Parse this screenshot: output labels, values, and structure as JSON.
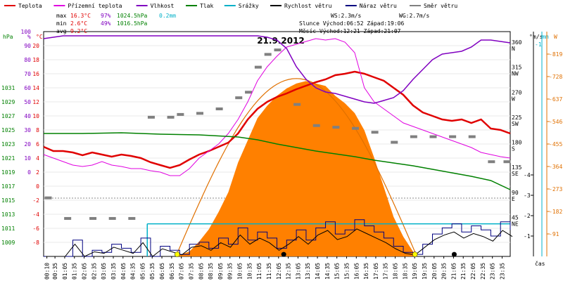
{
  "chart_data": {
    "type": "line",
    "title": "21.9.2012",
    "legend": [
      {
        "label": "Teplota",
        "color": "#e00000"
      },
      {
        "label": "Přízemní teplota",
        "color": "#e000e0"
      },
      {
        "label": "Vlhkost",
        "color": "#8000c0"
      },
      {
        "label": "Tlak",
        "color": "#008000"
      },
      {
        "label": "Srážky",
        "color": "#00b0c8"
      },
      {
        "label": "Rychlost větru",
        "color": "#000000"
      },
      {
        "label": "Náraz větru",
        "color": "#000080"
      },
      {
        "label": "Směr větru",
        "color": "#808080"
      }
    ],
    "stats": {
      "max_label": "max",
      "max_temp": "16.3°C",
      "max_hum": "97%",
      "max_press": "1024.5hPa",
      "max_rain": "0.2mm",
      "min_label": "min",
      "min_temp": "2.6°C",
      "min_hum": "49%",
      "min_press": "1016.5hPa",
      "avg_label": "avg",
      "avg_temp": "9.2°C"
    },
    "info": {
      "ws": "WS:2.3m/s",
      "wg": "WG:2.7m/s",
      "sun": "Slunce Východ:06:52  Západ:19:06",
      "moon": "Měsíc  Východ:12:21  Západ:21:07"
    },
    "axes": {
      "hpa_unit": "hPa",
      "pct_unit": "%",
      "c_unit": "°C",
      "hpa_ticks": [
        "1031",
        "1029",
        "1027",
        "1025",
        "1023",
        "1021",
        "1019",
        "1017",
        "1015",
        "1013",
        "1011",
        "1009"
      ],
      "pct_ticks": [
        "100",
        "90",
        "80",
        "70",
        "60",
        "50",
        "40",
        "30",
        "20",
        "10",
        "0"
      ],
      "c_ticks": [
        "20",
        "18",
        "16",
        "14",
        "12",
        "10",
        "8",
        "6",
        "4",
        "2",
        "0",
        "-2",
        "-4",
        "-6",
        "-8"
      ],
      "dir_unit": "°",
      "dir_ticks": [
        "360",
        "315",
        "270",
        "225",
        "180",
        "135",
        "90",
        "45"
      ],
      "dir_labels": [
        "N",
        "NW",
        "W",
        "SW",
        "S",
        "SE",
        "E",
        "NE"
      ],
      "ms_unit": "m/s",
      "ms_ticks": [
        "4",
        "3",
        "2",
        "1"
      ],
      "mm_unit": "mm",
      "mm_ticks": [
        "1"
      ],
      "w_unit": "W",
      "w_ticks": [
        "819",
        "728",
        "637",
        "546",
        "455",
        "364",
        "273",
        "182",
        "91"
      ],
      "x_unit": "čas",
      "x_ticks": [
        "00:10",
        "00:35",
        "01:05",
        "01:35",
        "02:05",
        "02:35",
        "03:05",
        "03:35",
        "04:05",
        "04:35",
        "05:05",
        "05:35",
        "06:05",
        "06:35",
        "07:05",
        "07:35",
        "08:05",
        "08:35",
        "09:05",
        "09:35",
        "10:05",
        "10:35",
        "11:05",
        "11:35",
        "12:05",
        "12:35",
        "13:05",
        "13:35",
        "14:05",
        "14:35",
        "15:05",
        "15:35",
        "16:05",
        "16:35",
        "17:05",
        "17:35",
        "18:05",
        "18:35",
        "19:05",
        "19:35",
        "20:05",
        "20:35",
        "21:05",
        "21:35",
        "22:05",
        "22:35",
        "23:05",
        "23:35"
      ]
    },
    "x_range_hours": [
      0,
      24
    ],
    "temp_range_c": [
      -10,
      22
    ],
    "series": [
      {
        "name": "Teplota",
        "color": "#e00000",
        "x": [
          0,
          0.5,
          1,
          1.5,
          2,
          2.5,
          3,
          3.5,
          4,
          4.5,
          5,
          5.5,
          6,
          6.5,
          7,
          7.5,
          8,
          8.5,
          9,
          9.5,
          10,
          10.5,
          11,
          11.5,
          12,
          12.5,
          13,
          13.5,
          14,
          14.5,
          15,
          15.5,
          16,
          16.5,
          17,
          17.5,
          18,
          18.5,
          19,
          19.5,
          20,
          20.5,
          21,
          21.5,
          22,
          22.5,
          23,
          23.5,
          24
        ],
        "y": [
          5.6,
          5,
          5,
          4.8,
          4.4,
          4.8,
          4.5,
          4.2,
          4.5,
          4.3,
          4,
          3.4,
          3,
          2.6,
          3,
          3.8,
          4.5,
          5,
          5.6,
          6.2,
          7.5,
          9.5,
          11,
          12,
          12.7,
          13.2,
          13.8,
          14.3,
          14.8,
          15.2,
          15.8,
          16,
          16.3,
          16,
          15.5,
          15,
          14,
          13,
          11.5,
          10.5,
          10,
          9.5,
          9.3,
          9.5,
          9,
          9.5,
          8.2,
          8,
          7.5
        ]
      },
      {
        "name": "Přízemní teplota",
        "color": "#e000e0",
        "x": [
          0,
          0.5,
          1,
          1.5,
          2,
          2.5,
          3,
          3.5,
          4,
          4.5,
          5,
          5.5,
          6,
          6.5,
          7,
          7.5,
          8,
          8.5,
          9,
          9.5,
          10,
          10.5,
          11,
          11.5,
          12,
          12.5,
          13,
          13.5,
          14,
          14.5,
          15,
          15.5,
          16,
          16.5,
          17,
          17.5,
          18,
          18.5,
          19,
          19.5,
          20,
          20.5,
          21,
          21.5,
          22,
          22.5,
          23,
          23.5,
          24
        ],
        "y": [
          4.5,
          4,
          3.5,
          3,
          2.8,
          3,
          3.5,
          3,
          2.8,
          2.5,
          2.5,
          2.2,
          2,
          1.5,
          1.5,
          2.5,
          4,
          5,
          6,
          7.5,
          9.5,
          12,
          15,
          17,
          18.5,
          19.8,
          20.2,
          20.6,
          21,
          20.8,
          21,
          20.5,
          19,
          14,
          12,
          11,
          10,
          9,
          8.5,
          8,
          7.5,
          7,
          6.5,
          6,
          5.5,
          4.8,
          4.5,
          4.2,
          4
        ]
      },
      {
        "name": "Vlhkost",
        "color": "#8000c0",
        "x": [
          0,
          0.5,
          1,
          1.5,
          2,
          2.5,
          3,
          3.5,
          4,
          4.5,
          5,
          5.5,
          6,
          6.5,
          7,
          7.5,
          8,
          8.5,
          9,
          9.5,
          10,
          10.5,
          11,
          11.5,
          12,
          12.5,
          13,
          13.5,
          14,
          14.5,
          15,
          15.5,
          16,
          16.5,
          17,
          17.5,
          18,
          18.5,
          19,
          19.5,
          20,
          20.5,
          21,
          21.5,
          22,
          22.5,
          23,
          23.5,
          24
        ],
        "y": [
          95,
          96,
          97,
          97,
          97,
          97,
          97,
          97,
          97,
          97,
          97,
          97,
          97,
          97,
          97,
          97,
          97,
          97,
          97,
          97,
          97,
          97,
          97,
          96,
          94,
          88,
          75,
          66,
          60,
          57,
          56,
          54,
          52,
          50,
          49,
          51,
          53,
          58,
          66,
          73,
          80,
          84,
          85,
          86,
          89,
          94,
          94,
          93,
          92
        ]
      },
      {
        "name": "Tlak",
        "color": "#008000",
        "x": [
          0,
          2,
          4,
          6,
          8,
          10,
          11,
          12,
          13,
          14,
          15,
          16,
          17,
          18,
          19,
          20,
          21,
          22,
          23,
          24
        ],
        "y": [
          1024.5,
          1024.5,
          1024.6,
          1024.4,
          1024.3,
          1024.0,
          1023.6,
          1023.0,
          1022.5,
          1022.0,
          1021.6,
          1021.2,
          1020.7,
          1020.3,
          1019.9,
          1019.4,
          1018.9,
          1018.4,
          1017.8,
          1016.5
        ]
      }
    ],
    "wind_direction_deg": {
      "x": [
        0.2,
        1.2,
        2.5,
        3.5,
        4.5,
        5.5,
        6.5,
        7,
        8,
        9,
        10,
        10.5,
        11,
        11.5,
        12,
        13,
        14,
        15,
        16,
        17,
        18,
        19,
        20,
        21,
        22,
        23,
        23.8
      ],
      "y": [
        80,
        43,
        43,
        43,
        43,
        225,
        225,
        230,
        232,
        240,
        260,
        270,
        315,
        338,
        346,
        248,
        210,
        207,
        205,
        198,
        180,
        190,
        190,
        190,
        190,
        145,
        145
      ]
    },
    "solar_radiation_w": {
      "x": [
        6.8,
        7.5,
        8,
        8.5,
        9,
        9.5,
        10,
        10.5,
        11,
        11.5,
        12,
        12.5,
        13,
        13.5,
        14,
        14.5,
        15,
        15.5,
        16,
        16.5,
        17,
        17.5,
        18,
        18.5,
        19,
        19.2
      ],
      "y": [
        0,
        20,
        60,
        110,
        180,
        260,
        380,
        470,
        560,
        610,
        650,
        680,
        700,
        710,
        700,
        690,
        650,
        620,
        580,
        510,
        400,
        280,
        160,
        80,
        20,
        0
      ]
    },
    "wind_speed_ms": {
      "x": [
        0,
        1,
        1.5,
        2,
        2.5,
        3,
        3.5,
        4,
        4.5,
        5,
        5.5,
        6,
        6.5,
        7,
        7.5,
        8,
        8.5,
        9,
        9.5,
        10,
        10.5,
        11,
        11.5,
        12,
        12.5,
        13,
        13.5,
        14,
        14.5,
        15,
        15.5,
        16,
        16.5,
        17,
        17.5,
        18,
        18.5,
        19,
        19.5,
        20,
        20.5,
        21,
        21.5,
        22,
        22.5,
        23,
        23.5,
        24
      ],
      "y": [
        0,
        0,
        0.8,
        0,
        0.3,
        0.2,
        0.6,
        0.4,
        0.2,
        0.9,
        0,
        0.5,
        0.3,
        0.1,
        0.6,
        0.7,
        0.4,
        0.9,
        0.6,
        1.4,
        0.8,
        1.2,
        0.9,
        0.4,
        0.8,
        1.3,
        0.8,
        1.4,
        1.7,
        1.1,
        1.3,
        1.8,
        1.5,
        1.2,
        0.9,
        0.5,
        0.2,
        0.1,
        0.6,
        1.1,
        1.4,
        1.6,
        1.2,
        1.5,
        1.3,
        1.0,
        1.7,
        1.3
      ]
    },
    "precipitation_mm": {
      "x": [
        5.33,
        24
      ],
      "y": [
        0.2,
        0.2
      ]
    }
  }
}
